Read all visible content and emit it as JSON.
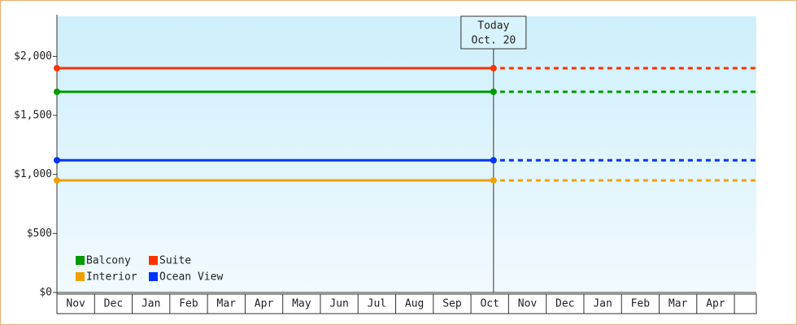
{
  "chart_data": {
    "type": "line",
    "categories": [
      "Nov",
      "Dec",
      "Jan",
      "Feb",
      "Mar",
      "Apr",
      "May",
      "Jun",
      "Jul",
      "Aug",
      "Sep",
      "Oct",
      "Nov",
      "Dec",
      "Jan",
      "Feb",
      "Mar",
      "Apr"
    ],
    "series": [
      {
        "name": "Balcony",
        "color": "#009900",
        "value": 1700
      },
      {
        "name": "Suite",
        "color": "#ff3300",
        "value": 1900
      },
      {
        "name": "Interior",
        "color": "#f0a000",
        "value": 950
      },
      {
        "name": "Ocean View",
        "color": "#0033ff",
        "value": 1120
      }
    ],
    "annotation": {
      "lines": [
        "Today",
        "Oct. 20"
      ]
    },
    "ylim": [
      0,
      2340
    ],
    "yticks": [
      {
        "value": 0,
        "label": "$0"
      },
      {
        "value": 500,
        "label": "$500"
      },
      {
        "value": 1000,
        "label": "$1,000"
      },
      {
        "value": 1500,
        "label": "$1,500"
      },
      {
        "value": 2000,
        "label": "$2,000"
      }
    ],
    "legend": "bottom-left"
  }
}
